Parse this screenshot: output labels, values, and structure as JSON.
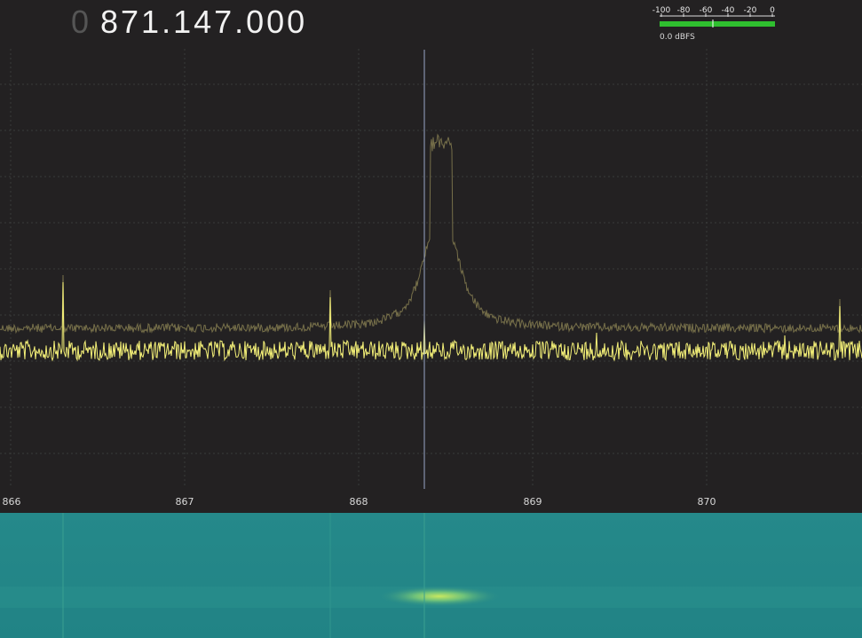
{
  "frequency": {
    "prefix": "0",
    "value": "871.147.000"
  },
  "meter": {
    "ticks": [
      "-100",
      "-80",
      "-60",
      "-40",
      "-20",
      "0"
    ],
    "reading": "0.0 dBFS"
  },
  "spectrum": {
    "axis_labels": [
      "866",
      "867",
      "868",
      "869",
      "870"
    ]
  }
}
